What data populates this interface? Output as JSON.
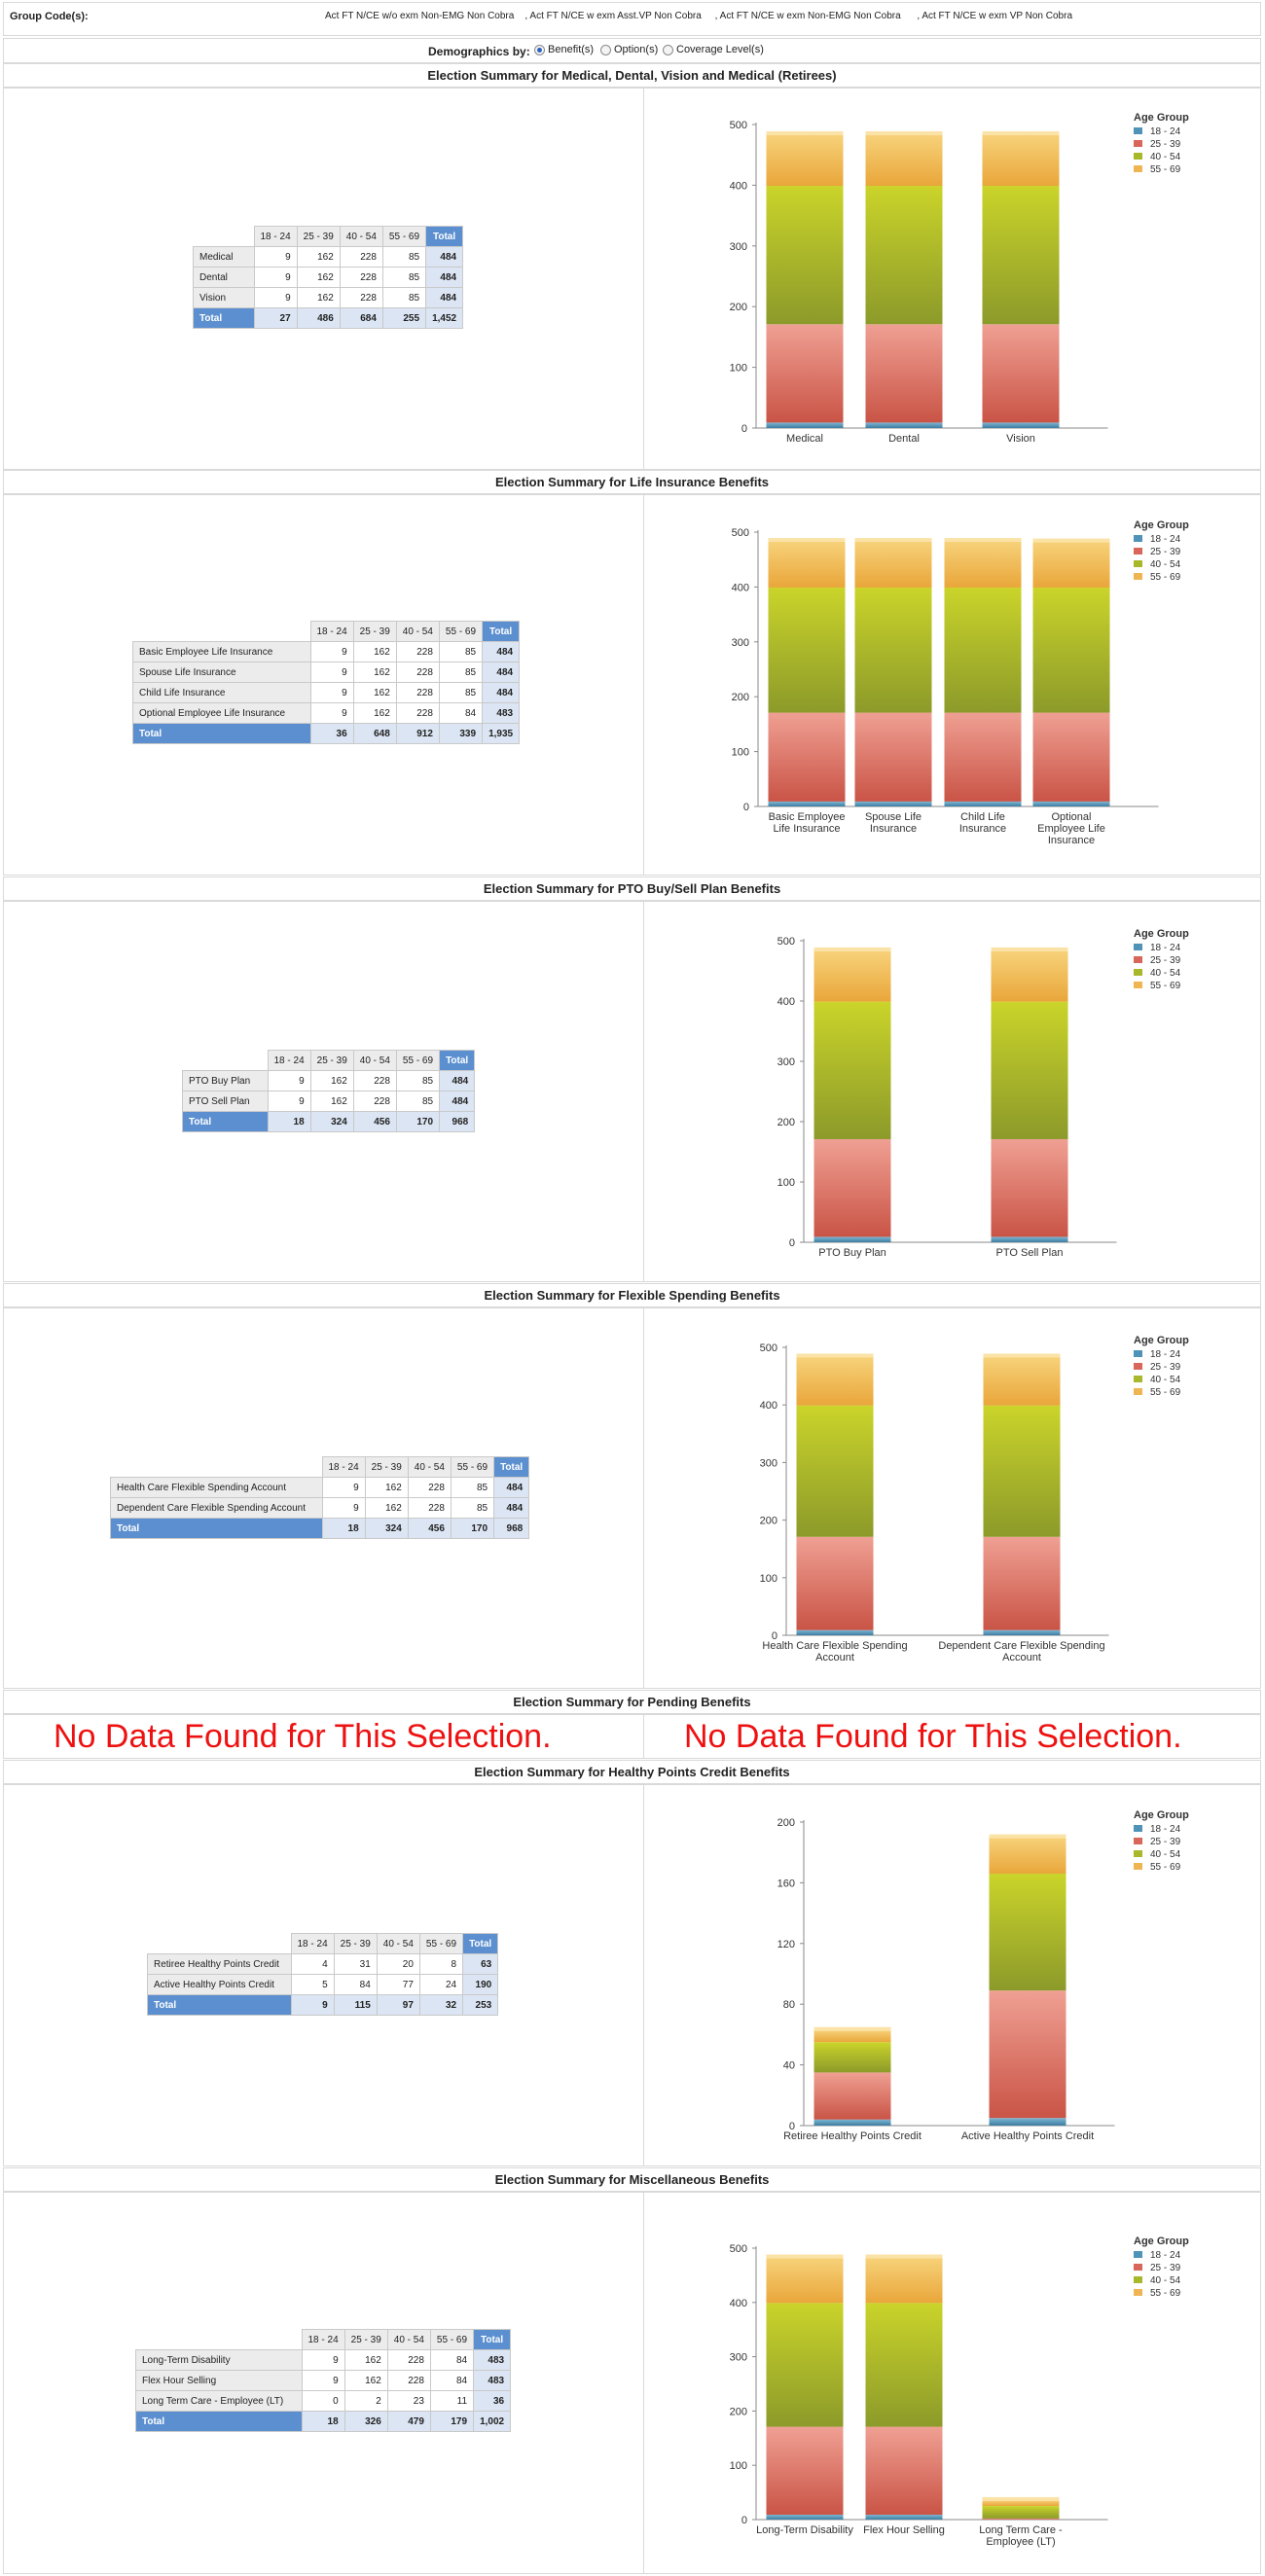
{
  "header": {
    "group_codes_label": "Group Code(s):",
    "group_codes_value": "Act FT N/CE w/o exm Non-EMG Non Cobra    , Act FT N/CE w exm Asst.VP Non Cobra     , Act FT N/CE w exm Non-EMG Non Cobra      , Act FT N/CE w exm VP Non Cobra"
  },
  "demographics": {
    "label": "Demographics by:",
    "options": [
      "Benefit(s)",
      "Option(s)",
      "Coverage Level(s)"
    ],
    "selected": "Benefit(s)"
  },
  "legend_title": "Age Group",
  "age_groups": [
    "18 - 24",
    "25 - 39",
    "40 - 54",
    "55 - 69"
  ],
  "total_label": "Total",
  "colors": {
    "age_18_24": "#4f94b8",
    "age_25_39": "#d9665a",
    "age_40_54": "#a8b82a",
    "age_55_69": "#f0b553",
    "table_total": "#5b8fcf",
    "no_data": "#ee1111"
  },
  "no_data_text": "No Data Found for This Selection.",
  "sections": [
    {
      "title": "Election Summary for Medical, Dental, Vision and Medical (Retirees)",
      "rows": [
        {
          "name": "Medical",
          "v": [
            "9",
            "162",
            "228",
            "85"
          ],
          "t": "484"
        },
        {
          "name": "Dental",
          "v": [
            "9",
            "162",
            "228",
            "85"
          ],
          "t": "484"
        },
        {
          "name": "Vision",
          "v": [
            "9",
            "162",
            "228",
            "85"
          ],
          "t": "484"
        }
      ],
      "totals": [
        "27",
        "486",
        "684",
        "255",
        "1,452"
      ]
    },
    {
      "title": "Election Summary for Life Insurance Benefits",
      "rows": [
        {
          "name": "Basic Employee Life Insurance",
          "v": [
            "9",
            "162",
            "228",
            "85"
          ],
          "t": "484"
        },
        {
          "name": "Spouse Life Insurance",
          "v": [
            "9",
            "162",
            "228",
            "85"
          ],
          "t": "484"
        },
        {
          "name": "Child Life Insurance",
          "v": [
            "9",
            "162",
            "228",
            "85"
          ],
          "t": "484"
        },
        {
          "name": "Optional Employee Life Insurance",
          "v": [
            "9",
            "162",
            "228",
            "84"
          ],
          "t": "483"
        }
      ],
      "totals": [
        "36",
        "648",
        "912",
        "339",
        "1,935"
      ]
    },
    {
      "title": "Election Summary for PTO Buy/Sell Plan Benefits",
      "rows": [
        {
          "name": "PTO Buy Plan",
          "v": [
            "9",
            "162",
            "228",
            "85"
          ],
          "t": "484"
        },
        {
          "name": "PTO Sell Plan",
          "v": [
            "9",
            "162",
            "228",
            "85"
          ],
          "t": "484"
        }
      ],
      "totals": [
        "18",
        "324",
        "456",
        "170",
        "968"
      ]
    },
    {
      "title": "Election Summary for Flexible Spending Benefits",
      "rows": [
        {
          "name": "Health Care Flexible Spending Account",
          "v": [
            "9",
            "162",
            "228",
            "85"
          ],
          "t": "484"
        },
        {
          "name": "Dependent Care Flexible Spending Account",
          "v": [
            "9",
            "162",
            "228",
            "85"
          ],
          "t": "484"
        }
      ],
      "totals": [
        "18",
        "324",
        "456",
        "170",
        "968"
      ]
    },
    {
      "title": "Election Summary for Pending Benefits",
      "rows": [],
      "totals": []
    },
    {
      "title": "Election Summary for Healthy Points Credit Benefits",
      "rows": [
        {
          "name": "Retiree Healthy Points Credit",
          "v": [
            "4",
            "31",
            "20",
            "8"
          ],
          "t": "63"
        },
        {
          "name": "Active Healthy Points Credit",
          "v": [
            "5",
            "84",
            "77",
            "24"
          ],
          "t": "190"
        }
      ],
      "totals": [
        "9",
        "115",
        "97",
        "32",
        "253"
      ]
    },
    {
      "title": "Election Summary for Miscellaneous Benefits",
      "rows": [
        {
          "name": "Long-Term Disability",
          "v": [
            "9",
            "162",
            "228",
            "84"
          ],
          "t": "483"
        },
        {
          "name": "Flex Hour Selling",
          "v": [
            "9",
            "162",
            "228",
            "84"
          ],
          "t": "483"
        },
        {
          "name": "Long Term Care - Employee (LT)",
          "v": [
            "0",
            "2",
            "23",
            "11"
          ],
          "t": "36"
        }
      ],
      "totals": [
        "18",
        "326",
        "479",
        "179",
        "1,002"
      ]
    }
  ],
  "chart_data": [
    {
      "type": "bar",
      "stacked": true,
      "categories": [
        [
          "Medical"
        ],
        [
          "Dental"
        ],
        [
          "Vision"
        ]
      ],
      "ylim": [
        0,
        500
      ],
      "yticks": [
        0,
        100,
        200,
        300,
        400,
        500
      ],
      "series": [
        {
          "name": "18 - 24",
          "values": [
            9,
            9,
            9
          ]
        },
        {
          "name": "25 - 39",
          "values": [
            162,
            162,
            162
          ]
        },
        {
          "name": "40 - 54",
          "values": [
            228,
            228,
            228
          ]
        },
        {
          "name": "55 - 69",
          "values": [
            85,
            85,
            85
          ]
        }
      ],
      "legend": "top-right"
    },
    {
      "type": "bar",
      "stacked": true,
      "categories": [
        [
          "Basic Employee",
          "Life Insurance"
        ],
        [
          "Spouse Life",
          "Insurance"
        ],
        [
          "Child Life",
          "Insurance"
        ],
        [
          "Optional",
          "Employee Life",
          "Insurance"
        ]
      ],
      "ylim": [
        0,
        500
      ],
      "yticks": [
        0,
        100,
        200,
        300,
        400,
        500
      ],
      "series": [
        {
          "name": "18 - 24",
          "values": [
            9,
            9,
            9,
            9
          ]
        },
        {
          "name": "25 - 39",
          "values": [
            162,
            162,
            162,
            162
          ]
        },
        {
          "name": "40 - 54",
          "values": [
            228,
            228,
            228,
            228
          ]
        },
        {
          "name": "55 - 69",
          "values": [
            85,
            85,
            85,
            84
          ]
        }
      ],
      "legend": "top-right"
    },
    {
      "type": "bar",
      "stacked": true,
      "categories": [
        [
          "PTO Buy Plan"
        ],
        [
          "PTO Sell Plan"
        ]
      ],
      "ylim": [
        0,
        500
      ],
      "yticks": [
        0,
        100,
        200,
        300,
        400,
        500
      ],
      "series": [
        {
          "name": "18 - 24",
          "values": [
            9,
            9
          ]
        },
        {
          "name": "25 - 39",
          "values": [
            162,
            162
          ]
        },
        {
          "name": "40 - 54",
          "values": [
            228,
            228
          ]
        },
        {
          "name": "55 - 69",
          "values": [
            85,
            85
          ]
        }
      ],
      "legend": "top-right"
    },
    {
      "type": "bar",
      "stacked": true,
      "categories": [
        [
          "Health Care Flexible Spending",
          "Account"
        ],
        [
          "Dependent Care Flexible Spending",
          "Account"
        ]
      ],
      "ylim": [
        0,
        500
      ],
      "yticks": [
        0,
        100,
        200,
        300,
        400,
        500
      ],
      "series": [
        {
          "name": "18 - 24",
          "values": [
            9,
            9
          ]
        },
        {
          "name": "25 - 39",
          "values": [
            162,
            162
          ]
        },
        {
          "name": "40 - 54",
          "values": [
            228,
            228
          ]
        },
        {
          "name": "55 - 69",
          "values": [
            85,
            85
          ]
        }
      ],
      "legend": "top-right"
    },
    {
      "type": "bar",
      "stacked": true,
      "categories": [
        [
          "Retiree Healthy Points Credit"
        ],
        [
          "Active Healthy Points Credit"
        ]
      ],
      "ylim": [
        0,
        200
      ],
      "yticks": [
        0,
        40,
        80,
        120,
        160,
        200
      ],
      "series": [
        {
          "name": "18 - 24",
          "values": [
            4,
            5
          ]
        },
        {
          "name": "25 - 39",
          "values": [
            31,
            84
          ]
        },
        {
          "name": "40 - 54",
          "values": [
            20,
            77
          ]
        },
        {
          "name": "55 - 69",
          "values": [
            8,
            24
          ]
        }
      ],
      "legend": "top-right"
    },
    {
      "type": "bar",
      "stacked": true,
      "categories": [
        [
          "Long-Term Disability"
        ],
        [
          "Flex Hour Selling"
        ],
        [
          "Long Term Care -",
          "Employee (LT)"
        ]
      ],
      "ylim": [
        0,
        500
      ],
      "yticks": [
        0,
        100,
        200,
        300,
        400,
        500
      ],
      "series": [
        {
          "name": "18 - 24",
          "values": [
            9,
            9,
            0
          ]
        },
        {
          "name": "25 - 39",
          "values": [
            162,
            162,
            2
          ]
        },
        {
          "name": "40 - 54",
          "values": [
            228,
            228,
            23
          ]
        },
        {
          "name": "55 - 69",
          "values": [
            84,
            84,
            11
          ]
        }
      ],
      "legend": "top-right"
    }
  ]
}
